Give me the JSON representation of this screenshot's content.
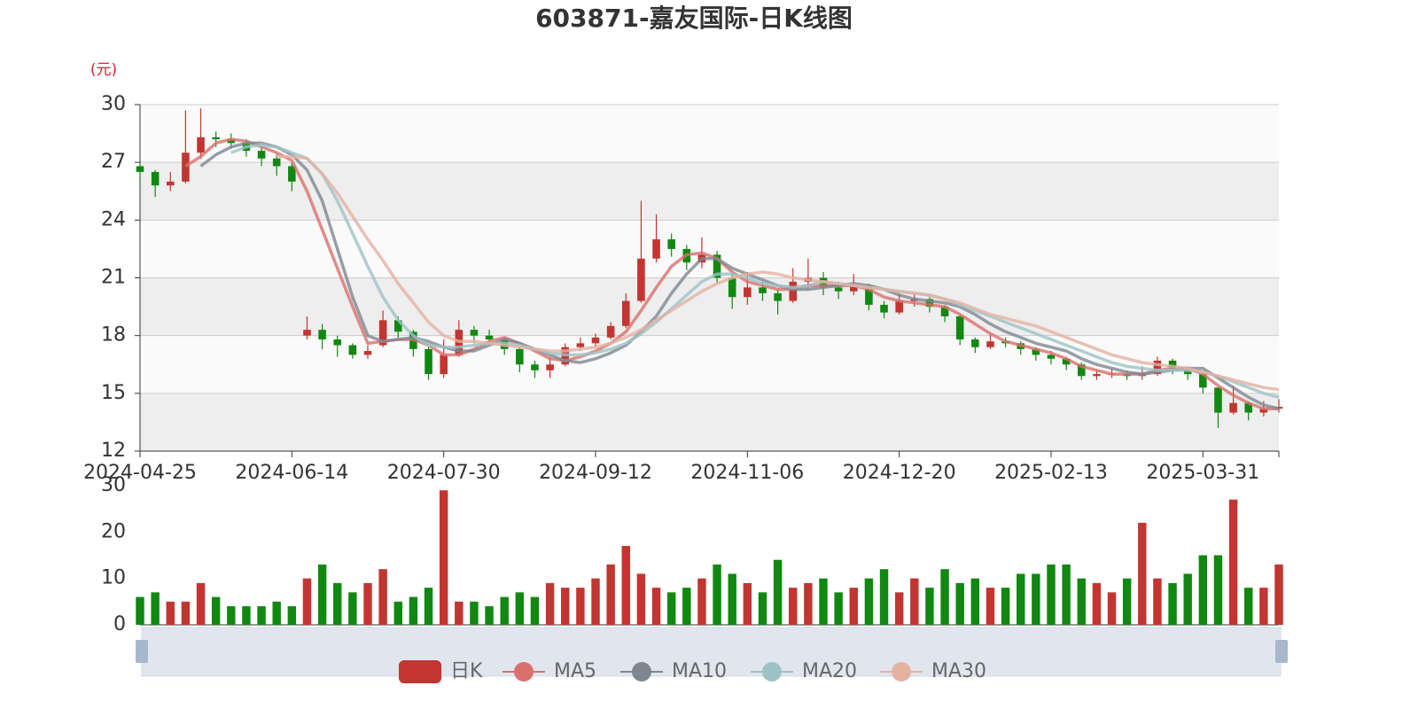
{
  "chart_data": [
    {
      "type": "candlestick",
      "title": "603871-嘉友国际-日K线图",
      "y_unit": "(元)",
      "name": "日K",
      "up_color": "#c23531",
      "down_color": "#118811",
      "categories": [
        "2024-04-25",
        null,
        null,
        null,
        null,
        null,
        null,
        null,
        null,
        null,
        "2024-06-14",
        null,
        null,
        null,
        null,
        null,
        null,
        null,
        null,
        null,
        "2024-07-30",
        null,
        null,
        null,
        null,
        null,
        null,
        null,
        null,
        null,
        "2024-09-12",
        null,
        null,
        null,
        null,
        null,
        null,
        null,
        null,
        null,
        "2024-11-06",
        null,
        null,
        null,
        null,
        null,
        null,
        null,
        null,
        null,
        "2024-12-20",
        null,
        null,
        null,
        null,
        null,
        null,
        null,
        null,
        null,
        "2025-02-13",
        null,
        null,
        null,
        null,
        null,
        null,
        null,
        null,
        null,
        "2025-03-31",
        null,
        null,
        null,
        null,
        null
      ],
      "values": [
        [
          26.8,
          26.5,
          26.0,
          27.0
        ],
        [
          26.5,
          25.8,
          25.2,
          26.6
        ],
        [
          25.8,
          26.0,
          25.5,
          26.5
        ],
        [
          26.0,
          27.5,
          25.9,
          29.7
        ],
        [
          27.5,
          28.3,
          27.2,
          29.8
        ],
        [
          28.3,
          28.2,
          27.8,
          28.6
        ],
        [
          28.2,
          28.0,
          27.7,
          28.5
        ],
        [
          28.0,
          27.6,
          27.3,
          28.2
        ],
        [
          27.6,
          27.2,
          26.8,
          27.8
        ],
        [
          27.2,
          26.8,
          26.3,
          27.4
        ],
        [
          26.8,
          26.0,
          25.5,
          27.0
        ],
        [
          18.0,
          18.3,
          17.8,
          19.0
        ],
        [
          18.3,
          17.8,
          17.3,
          18.6
        ],
        [
          17.8,
          17.5,
          16.9,
          18.0
        ],
        [
          17.5,
          17.0,
          16.8,
          17.6
        ],
        [
          17.0,
          17.2,
          16.8,
          17.5
        ],
        [
          17.5,
          18.8,
          17.4,
          19.3
        ],
        [
          18.8,
          18.2,
          17.9,
          19.0
        ],
        [
          18.2,
          17.3,
          16.9,
          18.3
        ],
        [
          17.3,
          16.0,
          15.7,
          17.4
        ],
        [
          16.0,
          17.0,
          15.8,
          17.8
        ],
        [
          17.0,
          18.3,
          16.9,
          18.8
        ],
        [
          18.3,
          18.0,
          17.6,
          18.5
        ],
        [
          18.0,
          17.8,
          17.5,
          18.3
        ],
        [
          17.8,
          17.3,
          17.0,
          17.9
        ],
        [
          17.3,
          16.5,
          16.1,
          17.4
        ],
        [
          16.5,
          16.2,
          15.8,
          16.7
        ],
        [
          16.2,
          16.5,
          15.8,
          16.9
        ],
        [
          16.5,
          17.4,
          16.4,
          17.6
        ],
        [
          17.4,
          17.6,
          17.2,
          17.9
        ],
        [
          17.6,
          17.9,
          17.4,
          18.1
        ],
        [
          17.9,
          18.5,
          17.8,
          18.7
        ],
        [
          18.5,
          19.8,
          18.4,
          20.2
        ],
        [
          19.8,
          22.0,
          19.7,
          25.0
        ],
        [
          22.0,
          23.0,
          21.8,
          24.3
        ],
        [
          23.0,
          22.5,
          22.1,
          23.3
        ],
        [
          22.5,
          21.8,
          21.4,
          22.7
        ],
        [
          21.8,
          22.2,
          21.5,
          23.1
        ],
        [
          22.2,
          21.0,
          20.7,
          22.4
        ],
        [
          21.0,
          20.0,
          19.4,
          21.2
        ],
        [
          20.0,
          20.5,
          19.6,
          21.3
        ],
        [
          20.5,
          20.2,
          19.8,
          20.8
        ],
        [
          20.2,
          19.8,
          19.1,
          20.4
        ],
        [
          19.8,
          20.8,
          19.7,
          21.5
        ],
        [
          20.8,
          21.0,
          20.4,
          22.0
        ],
        [
          21.0,
          20.5,
          20.1,
          21.3
        ],
        [
          20.5,
          20.3,
          19.9,
          20.8
        ],
        [
          20.3,
          20.6,
          20.1,
          21.2
        ],
        [
          20.6,
          19.6,
          19.3,
          20.7
        ],
        [
          19.6,
          19.2,
          18.9,
          19.8
        ],
        [
          19.2,
          19.8,
          19.1,
          20.2
        ],
        [
          19.8,
          19.9,
          19.5,
          20.2
        ],
        [
          19.9,
          19.5,
          19.2,
          20.0
        ],
        [
          19.5,
          19.0,
          18.7,
          19.6
        ],
        [
          19.0,
          17.8,
          17.5,
          19.1
        ],
        [
          17.8,
          17.4,
          17.1,
          17.9
        ],
        [
          17.4,
          17.7,
          17.3,
          18.1
        ],
        [
          17.7,
          17.6,
          17.4,
          17.9
        ],
        [
          17.6,
          17.3,
          17.0,
          17.7
        ],
        [
          17.3,
          17.0,
          16.7,
          17.4
        ],
        [
          17.0,
          16.8,
          16.5,
          17.2
        ],
        [
          16.8,
          16.5,
          16.2,
          16.9
        ],
        [
          16.5,
          15.9,
          15.7,
          16.6
        ],
        [
          15.9,
          16.0,
          15.7,
          16.2
        ],
        [
          16.0,
          16.0,
          15.8,
          16.3
        ],
        [
          16.0,
          15.9,
          15.7,
          16.2
        ],
        [
          15.9,
          16.0,
          15.7,
          16.4
        ],
        [
          16.0,
          16.7,
          15.9,
          16.9
        ],
        [
          16.7,
          16.3,
          16.0,
          16.8
        ],
        [
          16.3,
          16.0,
          15.7,
          16.4
        ],
        [
          16.0,
          15.3,
          15.0,
          16.1
        ],
        [
          15.3,
          14.0,
          13.2,
          15.3
        ],
        [
          14.0,
          14.5,
          13.9,
          15.4
        ],
        [
          14.5,
          14.0,
          13.6,
          14.6
        ],
        [
          14.0,
          14.2,
          13.8,
          14.6
        ],
        [
          14.2,
          14.3,
          14.0,
          14.7
        ]
      ],
      "series": [
        {
          "name": "MA5",
          "color": "#d9706c",
          "values": [
            null,
            null,
            null,
            26.8,
            27.3,
            28.0,
            28.2,
            28.1,
            27.8,
            27.5,
            27.1,
            25.5,
            23.5,
            21.5,
            19.5,
            17.6,
            17.7,
            17.8,
            17.8,
            17.5,
            17.0,
            17.0,
            17.3,
            17.7,
            17.9,
            17.6,
            17.2,
            16.8,
            16.7,
            16.9,
            17.2,
            17.6,
            18.2,
            19.3,
            20.5,
            21.6,
            22.2,
            22.3,
            22.0,
            21.3,
            20.8,
            20.6,
            20.4,
            20.4,
            20.6,
            20.6,
            20.6,
            20.6,
            20.4,
            20.0,
            19.8,
            19.7,
            19.6,
            19.5,
            19.1,
            18.6,
            18.1,
            17.7,
            17.5,
            17.3,
            17.1,
            16.8,
            16.4,
            16.2,
            16.0,
            16.0,
            16.0,
            16.2,
            16.3,
            16.3,
            16.0,
            15.4,
            14.9,
            14.5,
            14.2,
            14.2
          ]
        },
        {
          "name": "MA10",
          "color": "#7d8791",
          "values": [
            null,
            null,
            null,
            null,
            26.8,
            27.4,
            27.8,
            28.0,
            28.0,
            27.8,
            27.4,
            26.6,
            25.0,
            22.5,
            20.0,
            18.0,
            17.7,
            17.8,
            17.9,
            17.7,
            17.4,
            17.2,
            17.2,
            17.5,
            17.8,
            17.6,
            17.3,
            17.0,
            16.7,
            16.6,
            16.8,
            17.1,
            17.5,
            18.2,
            19.0,
            20.2,
            21.2,
            22.0,
            22.0,
            21.5,
            21.2,
            20.9,
            20.6,
            20.4,
            20.4,
            20.5,
            20.6,
            20.7,
            20.6,
            20.4,
            20.1,
            19.9,
            19.8,
            19.7,
            19.5,
            19.1,
            18.6,
            18.2,
            17.9,
            17.6,
            17.4,
            17.2,
            16.8,
            16.5,
            16.3,
            16.1,
            16.0,
            16.1,
            16.2,
            16.3,
            16.3,
            15.8,
            15.3,
            14.8,
            14.4,
            14.2
          ]
        },
        {
          "name": "MA20",
          "color": "#9dc3c7",
          "values": [
            null,
            null,
            null,
            null,
            null,
            null,
            27.5,
            27.8,
            27.9,
            27.8,
            27.5,
            27.2,
            26.4,
            25.0,
            23.3,
            21.6,
            20.0,
            18.8,
            18.0,
            17.5,
            17.4,
            17.4,
            17.5,
            17.6,
            17.6,
            17.5,
            17.3,
            17.1,
            17.0,
            17.0,
            17.1,
            17.3,
            17.6,
            18.1,
            18.7,
            19.4,
            20.1,
            20.8,
            21.2,
            21.2,
            21.0,
            20.7,
            20.6,
            20.5,
            20.6,
            20.8,
            20.7,
            20.6,
            20.5,
            20.4,
            20.3,
            20.2,
            20.1,
            19.9,
            19.6,
            19.3,
            19.0,
            18.7,
            18.4,
            18.1,
            17.8,
            17.5,
            17.2,
            16.9,
            16.6,
            16.4,
            16.3,
            16.2,
            16.2,
            16.2,
            16.1,
            15.9,
            15.6,
            15.3,
            15.0,
            14.8
          ]
        },
        {
          "name": "MA30",
          "color": "#e5b2a2",
          "values": [
            null,
            null,
            null,
            null,
            null,
            null,
            null,
            null,
            null,
            27.3,
            27.3,
            27.2,
            26.4,
            25.4,
            24.2,
            23.0,
            21.9,
            20.7,
            19.7,
            18.7,
            18.0,
            17.7,
            17.7,
            17.6,
            17.5,
            17.4,
            17.3,
            17.2,
            17.2,
            17.3,
            17.4,
            17.6,
            17.9,
            18.3,
            18.8,
            19.3,
            19.8,
            20.3,
            20.7,
            21.0,
            21.2,
            21.3,
            21.2,
            21.0,
            20.9,
            20.8,
            20.7,
            20.6,
            20.5,
            20.4,
            20.3,
            20.2,
            20.1,
            19.9,
            19.7,
            19.4,
            19.1,
            18.9,
            18.7,
            18.5,
            18.2,
            17.9,
            17.6,
            17.3,
            17.0,
            16.8,
            16.6,
            16.5,
            16.4,
            16.3,
            16.1,
            15.9,
            15.7,
            15.5,
            15.3,
            15.2
          ]
        }
      ],
      "ylim": [
        12,
        30
      ],
      "yticks": [
        12,
        15,
        18,
        21,
        24,
        27,
        30
      ],
      "grid": true
    },
    {
      "type": "bar",
      "values": [
        6,
        7,
        5,
        5,
        9,
        6,
        4,
        4,
        4,
        5,
        4,
        10,
        13,
        9,
        7,
        9,
        12,
        5,
        6,
        8,
        29,
        5,
        5,
        4,
        6,
        7,
        6,
        9,
        8,
        8,
        10,
        13,
        17,
        11,
        8,
        7,
        8,
        10,
        13,
        11,
        9,
        7,
        14,
        8,
        9,
        10,
        7,
        8,
        10,
        12,
        7,
        10,
        8,
        12,
        9,
        10,
        8,
        8,
        11,
        11,
        13,
        13,
        10,
        9,
        7,
        10,
        22,
        10,
        9,
        11,
        15,
        15,
        27,
        8,
        8,
        13
      ],
      "ylim": [
        0,
        30
      ],
      "yticks": [
        0,
        10,
        20,
        30
      ]
    }
  ]
}
